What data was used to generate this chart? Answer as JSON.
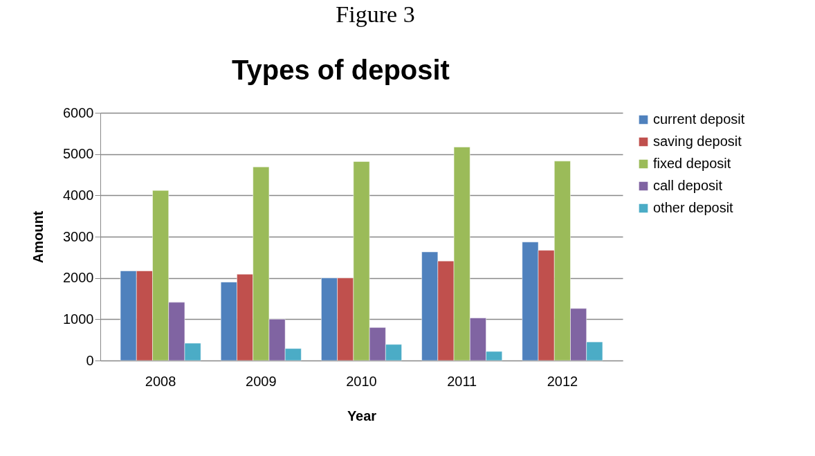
{
  "chart_data": {
    "type": "bar",
    "title": "Types of deposit",
    "xlabel": "Year",
    "ylabel": "Amount",
    "annotations": [
      "Figure 3"
    ],
    "categories": [
      "2008",
      "2009",
      "2010",
      "2011",
      "2012"
    ],
    "series": [
      {
        "name": "current deposit",
        "color": "#4f81bd",
        "values": [
          2170,
          1900,
          2000,
          2630,
          2870
        ]
      },
      {
        "name": "saving deposit",
        "color": "#c0504d",
        "values": [
          2170,
          2090,
          2000,
          2410,
          2670
        ]
      },
      {
        "name": "fixed deposit",
        "color": "#9bbb59",
        "values": [
          4120,
          4690,
          4820,
          5170,
          4830
        ]
      },
      {
        "name": "call deposit",
        "color": "#8064a2",
        "values": [
          1410,
          1000,
          800,
          1030,
          1260
        ]
      },
      {
        "name": "other deposit",
        "color": "#4bacc6",
        "values": [
          420,
          290,
          390,
          220,
          450
        ]
      }
    ],
    "ylim": [
      0,
      6000
    ],
    "yticks": [
      0,
      1000,
      2000,
      3000,
      4000,
      5000,
      6000
    ],
    "grid": "y",
    "legend": "right"
  }
}
